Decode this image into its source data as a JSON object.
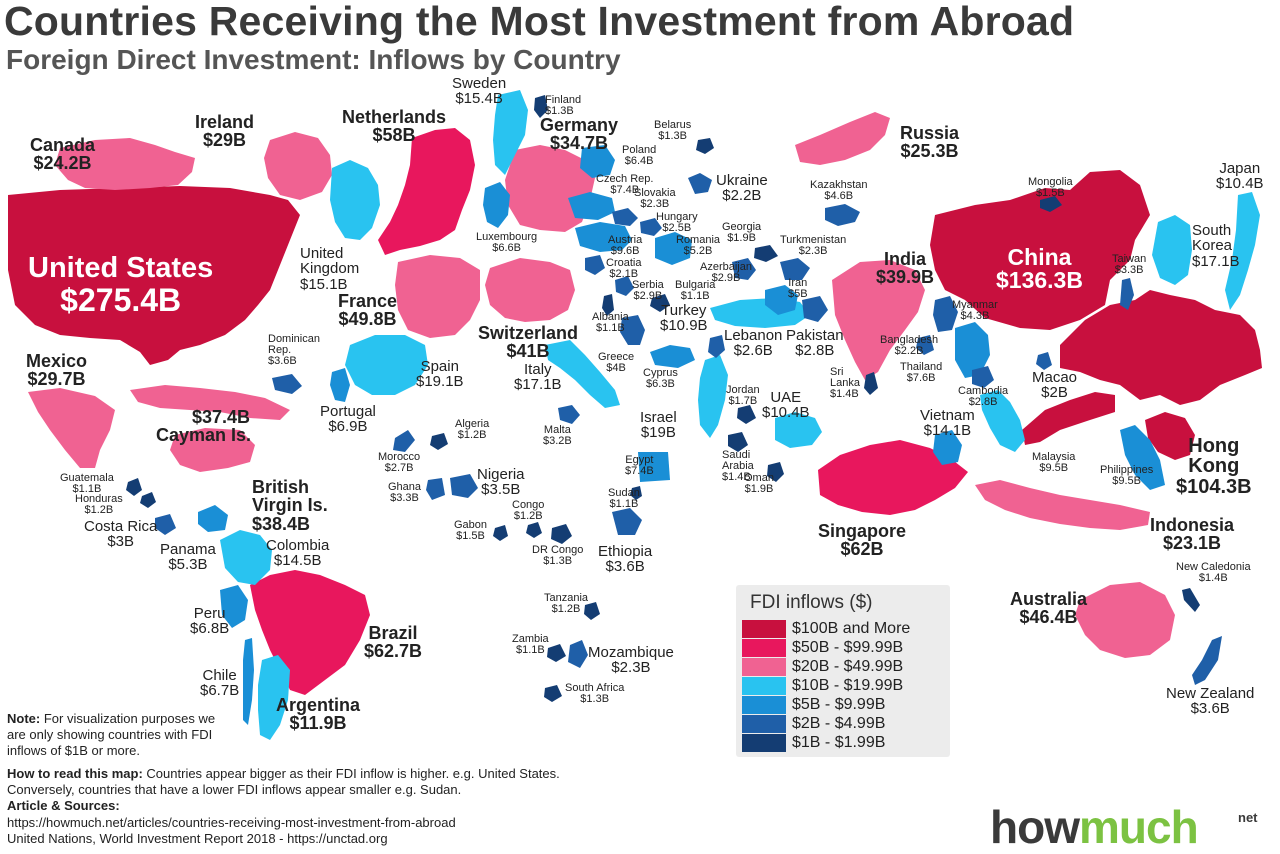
{
  "title": "Countries Receiving the Most Investment from Abroad",
  "subtitle": "Foreign Direct Investment: Inflows by Country",
  "colors": {
    "tier1": "#c8103e",
    "tier2": "#e8175d",
    "tier3": "#f06292",
    "tier4": "#29c3f0",
    "tier5": "#1a8fd6",
    "tier6": "#1f5fa8",
    "tier7": "#143d73"
  },
  "countries": {
    "united_states": {
      "name": "United States",
      "value": "$275.4B"
    },
    "canada": {
      "name": "Canada",
      "value": "$24.2B"
    },
    "ireland": {
      "name": "Ireland",
      "value": "$29B"
    },
    "netherlands": {
      "name": "Netherlands",
      "value": "$58B"
    },
    "sweden": {
      "name": "Sweden",
      "value": "$15.4B"
    },
    "finland": {
      "name": "Finland",
      "value": "$1.3B"
    },
    "germany": {
      "name": "Germany",
      "value": "$34.7B"
    },
    "belarus": {
      "name": "Belarus",
      "value": "$1.3B"
    },
    "poland": {
      "name": "Poland",
      "value": "$6.4B"
    },
    "czech": {
      "name": "Czech Rep.",
      "value": "$7.4B"
    },
    "slovakia": {
      "name": "Slovakia",
      "value": "$2.3B"
    },
    "ukraine": {
      "name": "Ukraine",
      "value": "$2.2B"
    },
    "russia": {
      "name": "Russia",
      "value": "$25.3B"
    },
    "kazakhstan": {
      "name": "Kazakhstan",
      "value": "$4.6B"
    },
    "mongolia": {
      "name": "Mongolia",
      "value": "$1.5B"
    },
    "japan": {
      "name": "Japan",
      "value": "$10.4B"
    },
    "united_kingdom": {
      "name": "United Kingdom",
      "value": "$15.1B"
    },
    "luxembourg": {
      "name": "Luxembourg",
      "value": "$6.6B"
    },
    "hungary": {
      "name": "Hungary",
      "value": "$2.5B"
    },
    "georgia": {
      "name": "Georgia",
      "value": "$1.9B"
    },
    "austria": {
      "name": "Austria",
      "value": "$9.6B"
    },
    "romania": {
      "name": "Romania",
      "value": "$5.2B"
    },
    "croatia": {
      "name": "Croatia",
      "value": "$2.1B"
    },
    "azerbaijan": {
      "name": "Azerbaijan",
      "value": "$2.9B"
    },
    "turkmenistan": {
      "name": "Turkmenistan",
      "value": "$2.3B"
    },
    "serbia": {
      "name": "Serbia",
      "value": "$2.9B"
    },
    "bulgaria": {
      "name": "Bulgaria",
      "value": "$1.1B"
    },
    "iran": {
      "name": "Iran",
      "value": "$5B"
    },
    "india": {
      "name": "India",
      "value": "$39.9B"
    },
    "china": {
      "name": "China",
      "value": "$136.3B"
    },
    "taiwan": {
      "name": "Taiwan",
      "value": "$3.3B"
    },
    "south_korea": {
      "name": "South Korea",
      "value": "$17.1B"
    },
    "france": {
      "name": "France",
      "value": "$49.8B"
    },
    "switzerland": {
      "name": "Switzerland",
      "value": "$41B"
    },
    "albania": {
      "name": "Albania",
      "value": "$1.1B"
    },
    "turkey": {
      "name": "Turkey",
      "value": "$10.9B"
    },
    "lebanon": {
      "name": "Lebanon",
      "value": "$2.6B"
    },
    "pakistan": {
      "name": "Pakistan",
      "value": "$2.8B"
    },
    "myanmar": {
      "name": "Myanmar",
      "value": "$4.3B"
    },
    "bangladesh": {
      "name": "Bangladesh",
      "value": "$2.2B"
    },
    "dominican": {
      "name": "Dominican Rep.",
      "value": "$3.6B"
    },
    "mexico": {
      "name": "Mexico",
      "value": "$29.7B"
    },
    "spain": {
      "name": "Spain",
      "value": "$19.1B"
    },
    "italy": {
      "name": "Italy",
      "value": "$17.1B"
    },
    "greece": {
      "name": "Greece",
      "value": "$4B"
    },
    "cyprus": {
      "name": "Cyprus",
      "value": "$6.3B"
    },
    "thailand": {
      "name": "Thailand",
      "value": "$7.6B"
    },
    "sri_lanka": {
      "name": "Sri Lanka",
      "value": "$1.4B"
    },
    "macao": {
      "name": "Macao",
      "value": "$2B"
    },
    "cambodia": {
      "name": "Cambodia",
      "value": "$2.8B"
    },
    "cayman": {
      "name": "Cayman Is.",
      "value": "$37.4B"
    },
    "portugal": {
      "name": "Portugal",
      "value": "$6.9B"
    },
    "jordan": {
      "name": "Jordan",
      "value": "$1.7B"
    },
    "uae": {
      "name": "UAE",
      "value": "$10.4B"
    },
    "vietnam": {
      "name": "Vietnam",
      "value": "$14.1B"
    },
    "algeria": {
      "name": "Algeria",
      "value": "$1.2B"
    },
    "malta": {
      "name": "Malta",
      "value": "$3.2B"
    },
    "israel": {
      "name": "Israel",
      "value": "$19B"
    },
    "hong_kong": {
      "name": "Hong Kong",
      "value": "$104.3B"
    },
    "morocco": {
      "name": "Morocco",
      "value": "$2.7B"
    },
    "saudi": {
      "name": "Saudi Arabia",
      "value": "$1.4B"
    },
    "malaysia": {
      "name": "Malaysia",
      "value": "$9.5B"
    },
    "philippines": {
      "name": "Philippines",
      "value": "$9.5B"
    },
    "guatemala": {
      "name": "Guatemala",
      "value": "$1.1B"
    },
    "nigeria": {
      "name": "Nigeria",
      "value": "$3.5B"
    },
    "egypt": {
      "name": "Egypt",
      "value": "$7.4B"
    },
    "oman": {
      "name": "Oman",
      "value": "$1.9B"
    },
    "bvi": {
      "name": "British Virgin Is.",
      "value": "$38.4B"
    },
    "ghana": {
      "name": "Ghana",
      "value": "$3.3B"
    },
    "honduras": {
      "name": "Honduras",
      "value": "$1.2B"
    },
    "sudan": {
      "name": "Sudan",
      "value": "$1.1B"
    },
    "congo": {
      "name": "Congo",
      "value": "$1.2B"
    },
    "indonesia": {
      "name": "Indonesia",
      "value": "$23.1B"
    },
    "costa_rica": {
      "name": "Costa Rica",
      "value": "$3B"
    },
    "gabon": {
      "name": "Gabon",
      "value": "$1.5B"
    },
    "singapore": {
      "name": "Singapore",
      "value": "$62B"
    },
    "colombia": {
      "name": "Colombia",
      "value": "$14.5B"
    },
    "panama": {
      "name": "Panama",
      "value": "$5.3B"
    },
    "dr_congo": {
      "name": "DR Congo",
      "value": "$1.3B"
    },
    "ethiopia": {
      "name": "Ethiopia",
      "value": "$3.6B"
    },
    "new_caledonia": {
      "name": "New Caledonia",
      "value": "$1.4B"
    },
    "tanzania": {
      "name": "Tanzania",
      "value": "$1.2B"
    },
    "australia": {
      "name": "Australia",
      "value": "$46.4B"
    },
    "peru": {
      "name": "Peru",
      "value": "$6.8B"
    },
    "brazil": {
      "name": "Brazil",
      "value": "$62.7B"
    },
    "zambia": {
      "name": "Zambia",
      "value": "$1.1B"
    },
    "mozambique": {
      "name": "Mozambique",
      "value": "$2.3B"
    },
    "chile": {
      "name": "Chile",
      "value": "$6.7B"
    },
    "south_africa": {
      "name": "South Africa",
      "value": "$1.3B"
    },
    "argentina": {
      "name": "Argentina",
      "value": "$11.9B"
    },
    "new_zealand": {
      "name": "New Zealand",
      "value": "$3.6B"
    }
  },
  "legend": {
    "title": "FDI inflows ($)",
    "items": [
      {
        "label": "$100B and More",
        "color": "#c8103e"
      },
      {
        "label": "$50B - $99.99B",
        "color": "#e8175d"
      },
      {
        "label": "$20B - $49.99B",
        "color": "#f06292"
      },
      {
        "label": "$10B - $19.99B",
        "color": "#29c3f0"
      },
      {
        "label": "$5B - $9.99B",
        "color": "#1a8fd6"
      },
      {
        "label": "$2B - $4.99B",
        "color": "#1f5fa8"
      },
      {
        "label": "$1B - $1.99B",
        "color": "#143d73"
      }
    ]
  },
  "note": {
    "label": "Note:",
    "text": "For visualization purposes we are only showing countries with FDI inflows of $1B or more."
  },
  "howto": {
    "label": "How to read this map:",
    "text": "Countries appear bigger as their FDI inflow is higher. e.g. United States. Conversely, countries that have a lower FDI inflows appear smaller e.g. Sudan."
  },
  "sources": {
    "label": "Article & Sources:",
    "line1": "https://howmuch.net/articles/countries-receiving-most-investment-from-abroad",
    "line2": "United Nations, World Investment Report 2018 - https://unctad.org"
  },
  "logo": {
    "part1": "how",
    "part2": "much",
    "net": "net"
  }
}
